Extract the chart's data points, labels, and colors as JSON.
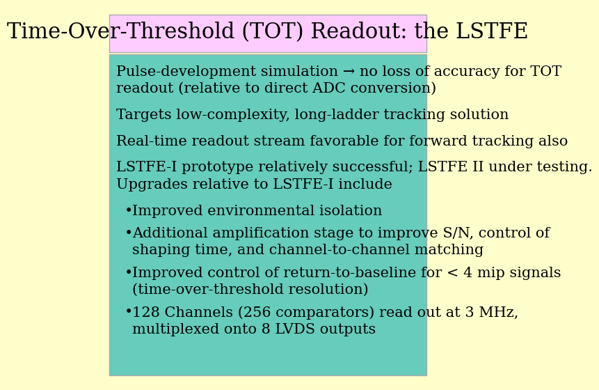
{
  "title": "Time-Over-Threshold (TOT) Readout: the LSTFE",
  "title_bg": "#ffccff",
  "title_color": "#000000",
  "body_bg": "#66ccbb",
  "outer_bg": "#ffffcc",
  "title_fontsize": 22,
  "body_fontsize": 15,
  "bullet_fontsize": 15,
  "paragraphs": [
    "Pulse-development simulation → no loss of accuracy for TOT\nreadout (relative to direct ADC conversion)",
    "Targets low-complexity, long-ladder tracking solution",
    "Real-time readout stream favorable for forward tracking also",
    "LSTFE-I prototype relatively successful; LSTFE II under testing.\nUpgrades relative to LSTFE-I include"
  ],
  "bullets": [
    "Improved environmental isolation",
    "Additional amplification stage to improve S/N, control of\nshaping time, and channel-to-channel matching",
    "Improved control of return-to-baseline for < 4 mip signals\n(time-over-threshold resolution)",
    "128 Channels (256 comparators) read out at 3 MHz,\nmultiplexed onto 8 LVDS outputs"
  ],
  "text_color": "#000000",
  "bullet_color": "#000000"
}
